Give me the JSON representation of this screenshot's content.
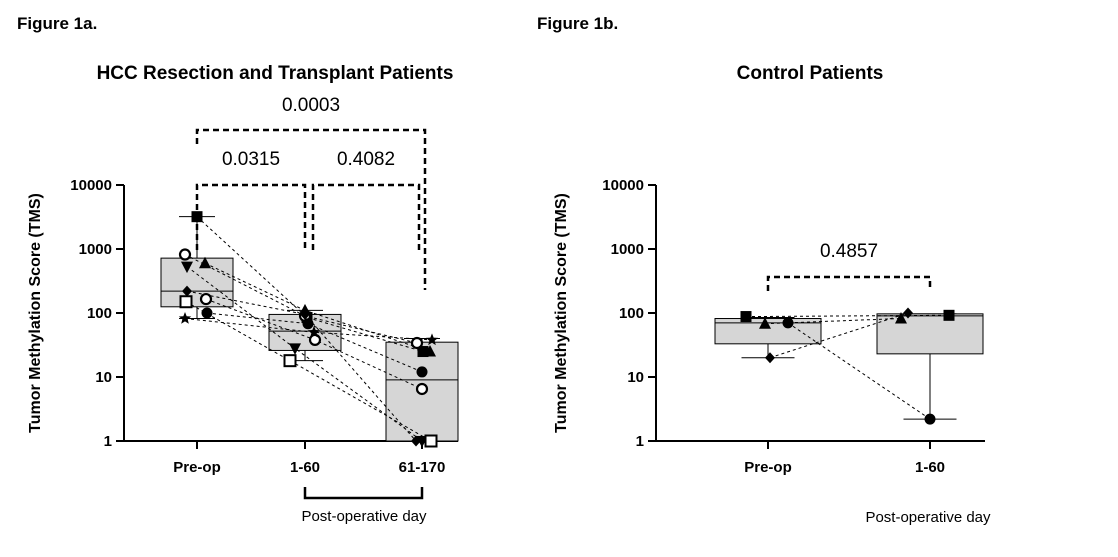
{
  "chart_data": [
    {
      "type": "box",
      "panel_label": "Figure 1a.",
      "title": "HCC Resection and Transplant Patients",
      "ylabel": "Tumor Methylation Score (TMS)",
      "yscale": "log",
      "ylim": [
        1,
        10000
      ],
      "yticks": [
        "1",
        "10",
        "100",
        "1000",
        "10000"
      ],
      "yticks_values": [
        1,
        10,
        100,
        1000,
        10000
      ],
      "categories": [
        "Pre-op",
        "1-60",
        "61-170"
      ],
      "xlabel": "Post-operative day",
      "xlabel_bracket": [
        "1-60",
        "61-170"
      ],
      "boxes": [
        {
          "category": "Pre-op",
          "q1": 125,
          "median": 220,
          "q3": 720,
          "whisker_low": 82,
          "whisker_high": 3200
        },
        {
          "category": "1-60",
          "q1": 26,
          "median": 52,
          "q3": 95,
          "whisker_low": 18,
          "whisker_high": 110
        },
        {
          "category": "61-170",
          "q1": 1,
          "median": 9,
          "q3": 35,
          "whisker_low": 1,
          "whisker_high": 40
        }
      ],
      "patients": [
        {
          "marker": "square-filled",
          "values": [
            3200,
            85,
            25
          ]
        },
        {
          "marker": "circle-open",
          "values": [
            820,
            90,
            34
          ]
        },
        {
          "marker": "triangle-up",
          "values": [
            600,
            110,
            25
          ]
        },
        {
          "marker": "triangle-down",
          "values": [
            530,
            28,
            1
          ]
        },
        {
          "marker": "diamond",
          "values": [
            220,
            95,
            1
          ]
        },
        {
          "marker": "circle-open",
          "values": [
            165,
            38,
            6.5
          ]
        },
        {
          "marker": "square-open",
          "values": [
            150,
            18,
            1
          ]
        },
        {
          "marker": "circle-filled",
          "values": [
            100,
            68,
            12
          ]
        },
        {
          "marker": "star",
          "values": [
            82,
            50,
            38
          ]
        }
      ],
      "comparisons": [
        {
          "from": "Pre-op",
          "to": "1-60",
          "p": "0.0315"
        },
        {
          "from": "1-60",
          "to": "61-170",
          "p": "0.4082"
        },
        {
          "from": "Pre-op",
          "to": "61-170",
          "p": "0.0003"
        }
      ]
    },
    {
      "type": "box",
      "panel_label": "Figure 1b.",
      "title": "Control Patients",
      "ylabel": "Tumor Methylation Score (TMS)",
      "yscale": "log",
      "ylim": [
        1,
        10000
      ],
      "yticks": [
        "1",
        "10",
        "100",
        "1000",
        "10000"
      ],
      "yticks_values": [
        1,
        10,
        100,
        1000,
        10000
      ],
      "categories": [
        "Pre-op",
        "1-60"
      ],
      "xlabel": "Post-operative day",
      "boxes": [
        {
          "category": "Pre-op",
          "q1": 33,
          "median": 70,
          "q3": 82,
          "whisker_low": 20,
          "whisker_high": 85
        },
        {
          "category": "1-60",
          "q1": 23,
          "median": 90,
          "q3": 97,
          "whisker_low": 2.2,
          "whisker_high": 97
        }
      ],
      "patients": [
        {
          "marker": "square-filled",
          "values": [
            88,
            92
          ]
        },
        {
          "marker": "triangle-up",
          "values": [
            68,
            82
          ]
        },
        {
          "marker": "circle-filled",
          "values": [
            70,
            2.2
          ]
        },
        {
          "marker": "diamond",
          "values": [
            20,
            100
          ]
        }
      ],
      "comparisons": [
        {
          "from": "Pre-op",
          "to": "1-60",
          "p": "0.4857"
        }
      ]
    }
  ]
}
